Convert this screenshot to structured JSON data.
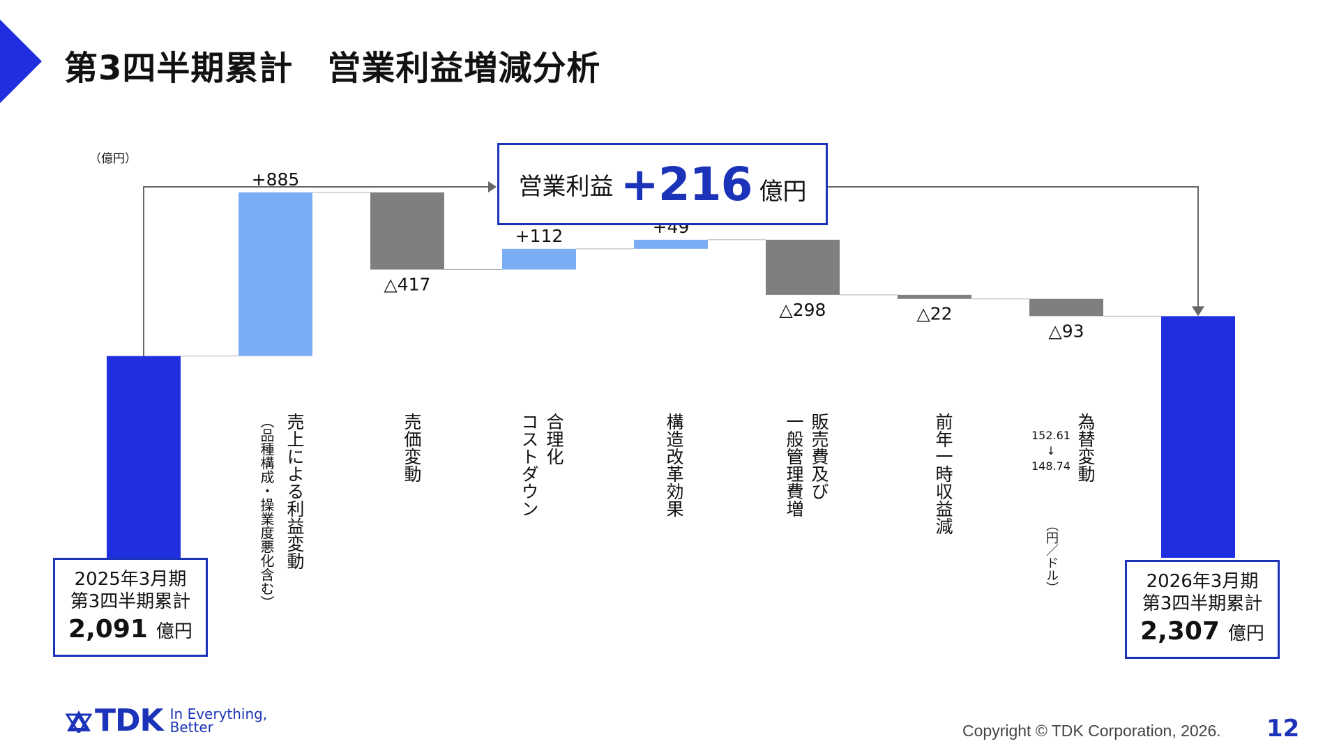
{
  "slide": {
    "title": "第3四半期累計　営業利益増減分析",
    "unit": "（億円）",
    "summary": {
      "label": "営業利益",
      "value": "+216",
      "unit": "億円"
    },
    "start": {
      "period": "2025年3月期",
      "sub": "第3四半期累計",
      "amount": "2,091",
      "unit": "億円"
    },
    "end": {
      "period": "2026年3月期",
      "sub": "第3四半期累計",
      "amount": "2,307",
      "unit": "億円"
    },
    "factors": [
      {
        "label": "売上による利益変動",
        "sub": "（品種構成・操業度悪化含む）"
      },
      {
        "label": "売価変動",
        "sub": ""
      },
      {
        "label": "合理化\nコストダウン",
        "sub": ""
      },
      {
        "label": "構造改革効果",
        "sub": ""
      },
      {
        "label": "販売費及び\n一般管理費増",
        "sub": ""
      },
      {
        "label": "前年一時収益減",
        "sub": ""
      },
      {
        "label": "為替変動",
        "sub": ""
      }
    ],
    "fx": {
      "rate": "152.61\n↓\n148.74",
      "unit": "（円／ドル）"
    },
    "footer": {
      "brand": "TDK",
      "tagline": "In Everything,\nBetter",
      "copyright": "Copyright © TDK Corporation, 2026.",
      "page": "12"
    }
  },
  "colors": {
    "total": "#1f2fe0",
    "increase": "#7aadf4",
    "decrease": "#7f7f7f",
    "accent": "#1a33b8"
  },
  "chart_data": {
    "type": "waterfall",
    "categories": [
      "2025年3月期 第3四半期累計",
      "売上による利益変動",
      "売価変動",
      "合理化 コストダウン",
      "構造改革効果",
      "販売費及び 一般管理費増",
      "前年一時収益減",
      "為替変動",
      "2026年3月期 第3四半期累計"
    ],
    "values": [
      2091,
      885,
      -417,
      112,
      49,
      -298,
      -22,
      -93,
      2307
    ],
    "labels": [
      "2,091",
      "+885",
      "△417",
      "+112",
      "+49",
      "△298",
      "△22",
      "△93",
      "2,307"
    ],
    "kinds": [
      "total",
      "increase",
      "decrease",
      "increase",
      "increase",
      "decrease",
      "decrease",
      "decrease",
      "total"
    ],
    "ylabel": "（億円）",
    "annotation": "営業利益 +216億円"
  }
}
